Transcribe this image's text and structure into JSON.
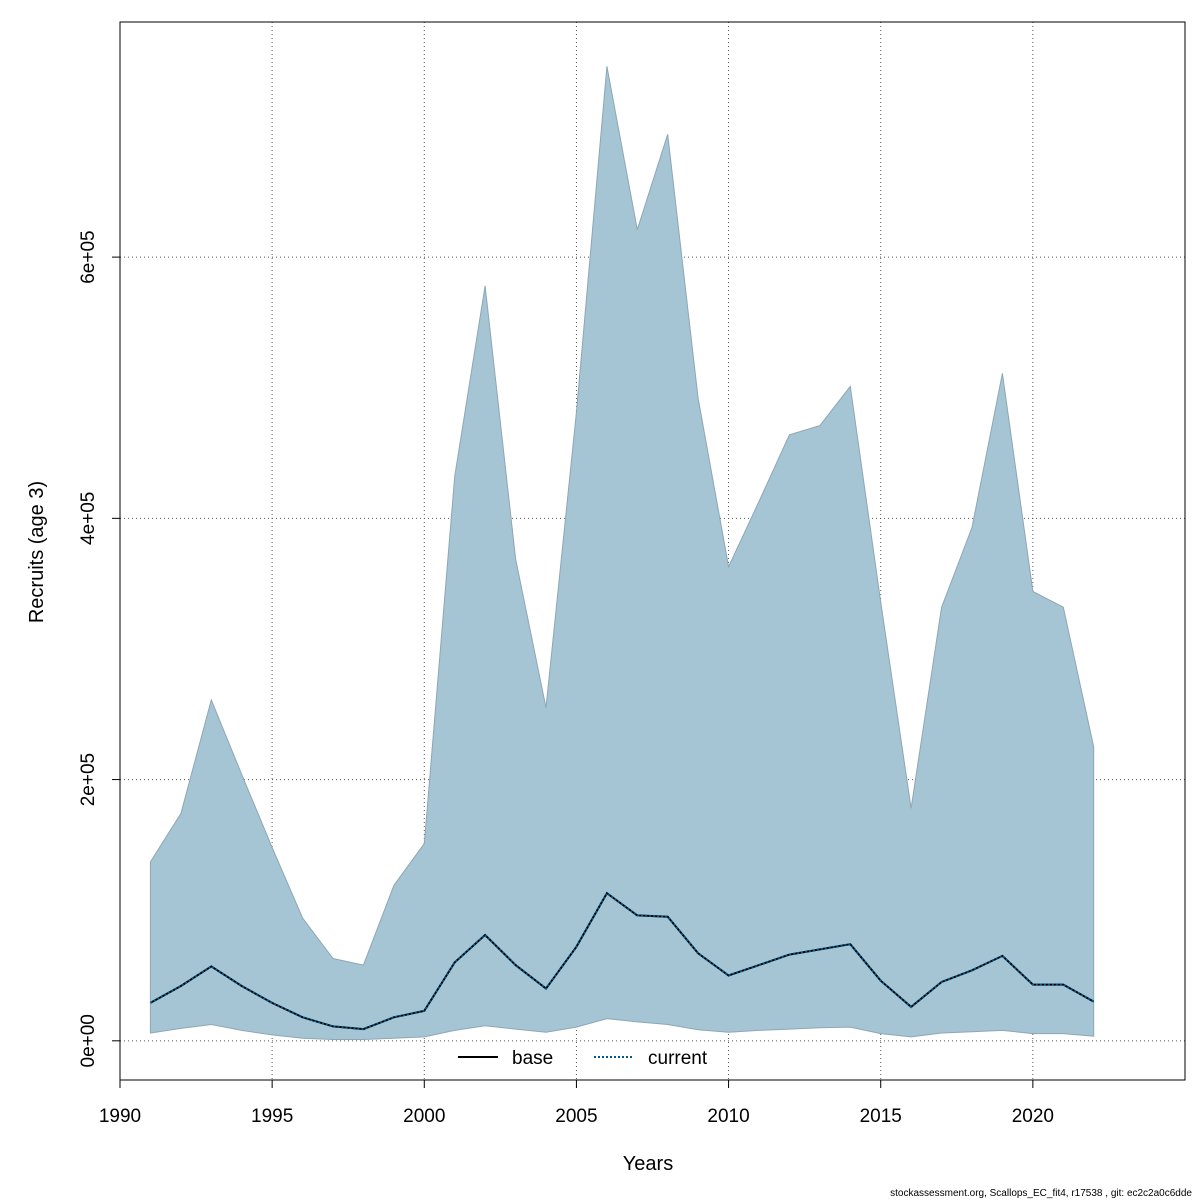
{
  "chart_data": {
    "type": "area",
    "xlabel": "Years",
    "ylabel": "Recruits (age 3)",
    "xlim": [
      1990,
      2025
    ],
    "ylim": [
      -30000,
      780000
    ],
    "x_ticks": [
      1990,
      1995,
      2000,
      2005,
      2010,
      2015,
      2020
    ],
    "x_tick_labels": [
      "1990",
      "1995",
      "2000",
      "2005",
      "2010",
      "2015",
      "2020"
    ],
    "y_ticks": [
      0,
      200000,
      400000,
      600000
    ],
    "y_tick_labels": [
      "0e+00",
      "2e+05",
      "4e+05",
      "6e+05"
    ],
    "grid": true,
    "legend_position": "bottom",
    "x": [
      1991,
      1992,
      1993,
      1994,
      1995,
      1996,
      1997,
      1998,
      1999,
      2000,
      2001,
      2002,
      2003,
      2004,
      2005,
      2006,
      2007,
      2008,
      2009,
      2010,
      2011,
      2012,
      2013,
      2014,
      2015,
      2016,
      2017,
      2018,
      2019,
      2020,
      2021,
      2022
    ],
    "band": {
      "upper": [
        137000,
        174000,
        261000,
        204000,
        148000,
        94000,
        63000,
        58000,
        119000,
        151000,
        432000,
        578000,
        369000,
        255000,
        481000,
        746000,
        621000,
        694000,
        492000,
        363000,
        413000,
        464000,
        471000,
        501000,
        336000,
        178000,
        332000,
        393000,
        511000,
        344000,
        332000,
        225000
      ],
      "lower": [
        6000,
        9500,
        12500,
        8000,
        4500,
        2000,
        1000,
        1000,
        2000,
        3000,
        8000,
        11500,
        9000,
        6500,
        10500,
        17000,
        14500,
        12500,
        8500,
        6500,
        8000,
        9000,
        10000,
        10500,
        5500,
        3000,
        6000,
        7000,
        8000,
        5500,
        5500,
        3500
      ],
      "fill_color": "#a5c4d4",
      "stroke_color": "#8ea7b4"
    },
    "series": [
      {
        "name": "base",
        "color": "#000000",
        "line_style": "solid",
        "values": [
          29000,
          42000,
          57000,
          42000,
          29000,
          18000,
          11000,
          9000,
          18000,
          23000,
          60000,
          81000,
          58000,
          40000,
          72000,
          113000,
          96000,
          95000,
          67000,
          50000,
          58000,
          66000,
          70000,
          74000,
          46000,
          26000,
          45000,
          54000,
          65000,
          43000,
          43000,
          30000
        ]
      },
      {
        "name": "current",
        "color": "#005a8c",
        "line_style": "dotted",
        "values": [
          29000,
          42000,
          57000,
          42000,
          29000,
          18000,
          11000,
          9000,
          18000,
          23000,
          60000,
          81000,
          58000,
          40000,
          72000,
          113000,
          96000,
          95000,
          67000,
          50000,
          58000,
          66000,
          70000,
          74000,
          46000,
          26000,
          45000,
          54000,
          65000,
          43000,
          43000,
          30000
        ]
      }
    ]
  },
  "footer": {
    "text": "stockassessment.org, Scallops_EC_fit4, r17538 , git: ec2c2a0c6dde"
  }
}
